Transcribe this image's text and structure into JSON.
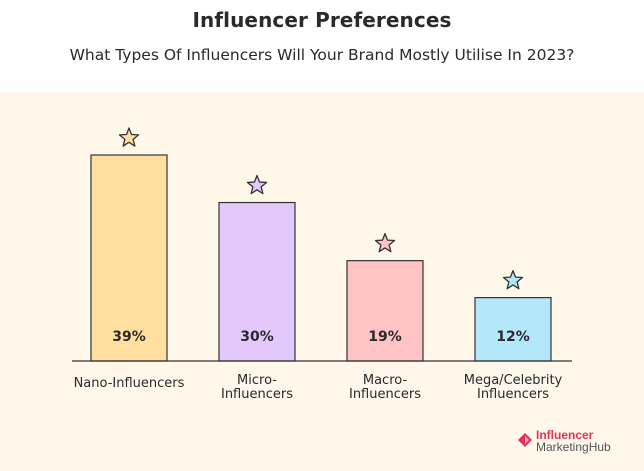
{
  "title": "Influencer Preferences",
  "subtitle": "What Types Of Influencers Will Your Brand Mostly Utilise In 2023?",
  "logo": {
    "line1": "Influencer",
    "line2": "MarketingHub"
  },
  "chart_data": {
    "type": "bar",
    "categories": [
      [
        "Nano-Influencers"
      ],
      [
        "Micro-",
        "Influencers"
      ],
      [
        "Macro-",
        "Influencers"
      ],
      [
        "Mega/Celebrity",
        "Influencers"
      ]
    ],
    "values": [
      39,
      30,
      19,
      12
    ],
    "value_labels": [
      "39%",
      "30%",
      "19%",
      "12%"
    ],
    "unit": "%",
    "ylim": [
      0,
      39
    ],
    "grid": false,
    "legend": "none",
    "bar_colors": [
      "#ffdfa0",
      "#e2c8fb",
      "#ffc2c5",
      "#b5e7fa"
    ],
    "star_colors": [
      "#ffdfa0",
      "#e2c8fb",
      "#ffc2c5",
      "#b5e7fa"
    ],
    "outline_color": "#333333",
    "background_color": "#fff7ea",
    "star_icon": "star-icon"
  }
}
